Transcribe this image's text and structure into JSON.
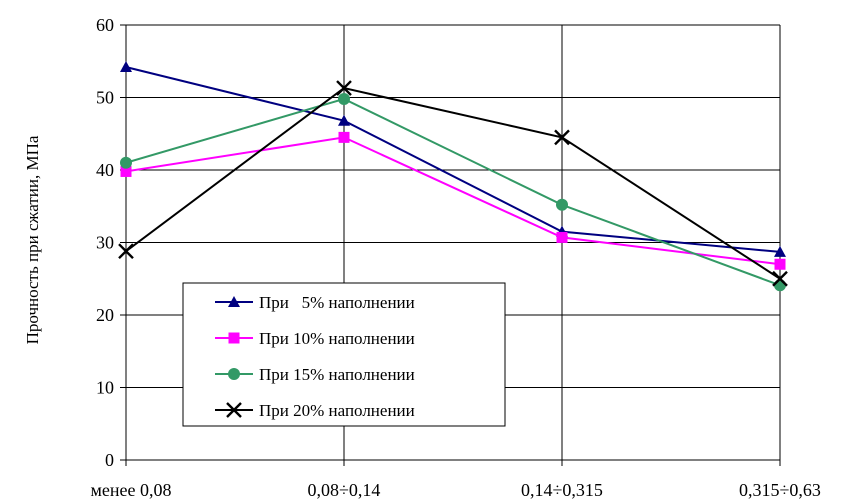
{
  "chart_data": {
    "type": "line",
    "title": "",
    "xlabel": "",
    "ylabel": "Прочность при сжатии, МПа",
    "categories": [
      "менее 0,08",
      "0,08÷0,14",
      "0,14÷0,315",
      "0,315÷0,63"
    ],
    "ylim": [
      0,
      60
    ],
    "yticks": [
      0,
      10,
      20,
      30,
      40,
      50,
      60
    ],
    "grid": true,
    "legend_position": "bottom-left",
    "series": [
      {
        "name": "При   5% наполнении",
        "values": [
          54.2,
          46.8,
          31.5,
          28.7
        ],
        "color": "#000080",
        "marker": "triangle"
      },
      {
        "name": "При 10% наполнении",
        "values": [
          39.8,
          44.5,
          30.7,
          27.0
        ],
        "color": "#ff00ff",
        "marker": "square"
      },
      {
        "name": "При 15% наполнении",
        "values": [
          41.0,
          49.8,
          35.2,
          24.1
        ],
        "color": "#339966",
        "marker": "circle"
      },
      {
        "name": "При 20% наполнении",
        "values": [
          28.8,
          51.3,
          44.5,
          25.0
        ],
        "color": "#000000",
        "marker": "x"
      }
    ]
  }
}
